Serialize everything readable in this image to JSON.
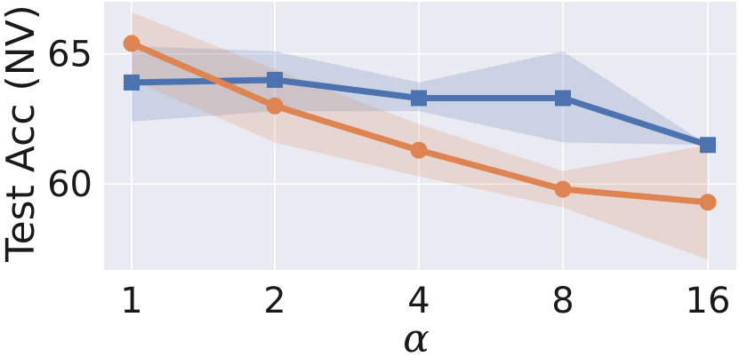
{
  "chart_data": {
    "type": "line",
    "x_categories": [
      "1",
      "2",
      "4",
      "8",
      "16"
    ],
    "xlabel": "α",
    "ylabel": "Test Acc (NV)",
    "ylim": [
      56.7,
      67.0
    ],
    "yticks": [
      60,
      65
    ],
    "grid": true,
    "background": "#eaeaf2",
    "series": [
      {
        "color": "#4c72b0",
        "marker": "square",
        "values": [
          63.9,
          64.0,
          63.3,
          63.3,
          61.5
        ],
        "band_lower": [
          62.4,
          62.8,
          62.8,
          61.6,
          61.5
        ],
        "band_upper": [
          65.3,
          65.1,
          63.9,
          65.1,
          61.5
        ]
      },
      {
        "color": "#dd8452",
        "marker": "circle",
        "values": [
          65.4,
          63.0,
          61.3,
          59.8,
          59.3
        ],
        "band_lower": [
          64.0,
          61.6,
          60.3,
          59.1,
          57.1
        ],
        "band_upper": [
          66.6,
          64.4,
          62.3,
          60.5,
          61.5
        ]
      }
    ]
  }
}
